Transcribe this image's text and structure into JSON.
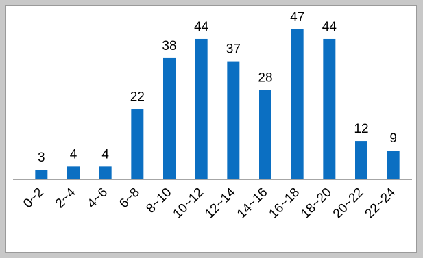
{
  "chart_data": {
    "type": "bar",
    "title": "",
    "xlabel": "",
    "ylabel": "",
    "categories": [
      "0~2",
      "2~4",
      "4~6",
      "6~8",
      "8~10",
      "10~12",
      "12~14",
      "14~16",
      "16~18",
      "18~20",
      "20~22",
      "22~24"
    ],
    "values": [
      3,
      4,
      4,
      22,
      38,
      44,
      37,
      28,
      47,
      44,
      12,
      9
    ],
    "ylim": [
      0,
      50
    ],
    "grid": false,
    "legend": "none",
    "bar_color": "#0b6fc2",
    "axis_color": "#888888"
  }
}
